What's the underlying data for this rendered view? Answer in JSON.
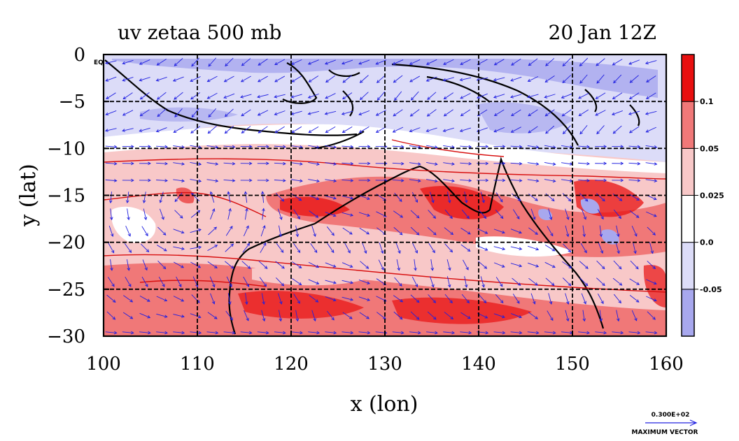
{
  "chart_data": {
    "type": "heatmap",
    "title_left": "uv zetaa 500 mb",
    "title_right": "20 Jan 12Z",
    "xlabel": "x (lon)",
    "ylabel": "y (lat)",
    "xlim": [
      100,
      160
    ],
    "ylim": [
      -30,
      0
    ],
    "x_ticks": [
      100,
      110,
      120,
      130,
      140,
      150,
      160
    ],
    "y_ticks": [
      0,
      -5,
      -10,
      -15,
      -20,
      -25,
      -30
    ],
    "y_tick_labels": [
      "0",
      "−5",
      "−10",
      "−15",
      "−20",
      "−25",
      "−30"
    ],
    "eq_label": "EQ",
    "grid": true,
    "colorbar": {
      "levels": [
        -0.05,
        0.0,
        0.025,
        0.05,
        0.1
      ],
      "labels": [
        "-0.05",
        "0.0",
        "0.025",
        "0.05",
        "0.1"
      ],
      "colors": [
        "#a8a8ee",
        "#dcdcf8",
        "#ffffff",
        "#f8c8c8",
        "#f07878",
        "#e81010"
      ]
    },
    "vector_legend": {
      "value": "0.300E+02",
      "label": "MAXIMUM VECTOR",
      "color": "#2020e0"
    }
  }
}
